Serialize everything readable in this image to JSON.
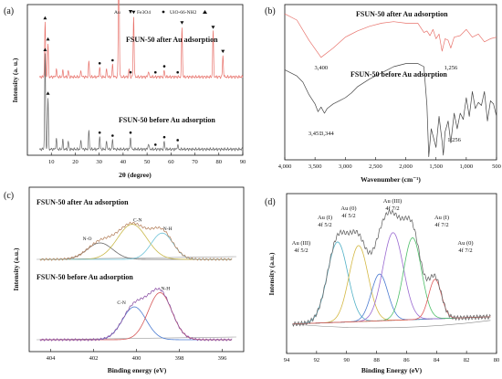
{
  "chart_data": [
    {
      "type": "line",
      "panel": "(a)",
      "xlabel": "2θ (degree)",
      "ylabel": "Intensity (a. u.)",
      "xlim": [
        0,
        90
      ],
      "xticks": [
        10,
        20,
        30,
        40,
        50,
        60,
        70,
        80,
        90
      ],
      "legend": [
        "Au",
        "Fe3O4",
        "UiO-66-NH2"
      ],
      "series": [
        {
          "name": "FSUN-50 after Au adsorption",
          "color": "#e8736c",
          "baseline": 0.52,
          "peaks": [
            [
              7.4,
              0.36
            ],
            [
              8.6,
              0.22
            ],
            [
              12.1,
              0.05
            ],
            [
              14.8,
              0.04
            ],
            [
              17.1,
              0.04
            ],
            [
              22.4,
              0.04
            ],
            [
              25.7,
              0.1
            ],
            [
              30.2,
              0.06
            ],
            [
              33.1,
              0.05
            ],
            [
              35.6,
              0.08
            ],
            [
              38.2,
              0.93
            ],
            [
              42.5,
              0.05
            ],
            [
              44.4,
              0.4
            ],
            [
              50.6,
              0.04
            ],
            [
              57.2,
              0.04
            ],
            [
              64.6,
              0.33
            ],
            [
              77.6,
              0.3
            ],
            [
              81.7,
              0.14
            ]
          ]
        },
        {
          "name": "FSUN-50 before Au adsorption",
          "color": "#666666",
          "baseline": 0.04,
          "peaks": [
            [
              7.4,
              0.63
            ],
            [
              8.6,
              0.34
            ],
            [
              12.1,
              0.07
            ],
            [
              14.8,
              0.06
            ],
            [
              17.1,
              0.05
            ],
            [
              22.4,
              0.06
            ],
            [
              25.7,
              0.12
            ],
            [
              30.2,
              0.08
            ],
            [
              33.1,
              0.05
            ],
            [
              35.6,
              0.06
            ],
            [
              43.1,
              0.08
            ],
            [
              50.6,
              0.04
            ],
            [
              57.2,
              0.05
            ],
            [
              62.8,
              0.03
            ]
          ]
        }
      ],
      "markers": {
        "after": [
          {
            "x": 7.4,
            "m": "tri"
          },
          {
            "x": 8.6,
            "m": "tri"
          },
          {
            "x": 30.2,
            "m": "dot"
          },
          {
            "x": 35.6,
            "m": "dot"
          },
          {
            "x": 38.2,
            "m": "tri_down"
          },
          {
            "x": 43.1,
            "m": "dot"
          },
          {
            "x": 44.4,
            "m": "tri_down"
          },
          {
            "x": 53.5,
            "m": "dot"
          },
          {
            "x": 57.2,
            "m": "dot"
          },
          {
            "x": 62.8,
            "m": "dot"
          },
          {
            "x": 64.6,
            "m": "tri_down"
          },
          {
            "x": 77.6,
            "m": "tri_down"
          },
          {
            "x": 81.7,
            "m": "tri_down"
          }
        ],
        "before": [
          {
            "x": 7.4,
            "m": "tri"
          },
          {
            "x": 8.6,
            "m": "tri"
          },
          {
            "x": 30.2,
            "m": "dot"
          },
          {
            "x": 35.6,
            "m": "dot"
          },
          {
            "x": 43.1,
            "m": "dot"
          },
          {
            "x": 53.5,
            "m": "dot"
          },
          {
            "x": 57.2,
            "m": "dot"
          },
          {
            "x": 62.8,
            "m": "dot"
          }
        ]
      }
    },
    {
      "type": "line",
      "panel": "(b)",
      "xlabel": "Wavenumber (cm⁻¹)",
      "xlim": [
        4000,
        500
      ],
      "xticks": [
        4000,
        3500,
        3000,
        2500,
        2000,
        1500,
        1000,
        500
      ],
      "series": [
        {
          "name": "FSUN-50 after Au adsorption",
          "color": "#e8736c",
          "x": [
            4000,
            3800,
            3600,
            3400,
            3200,
            3000,
            2800,
            2600,
            2400,
            2200,
            2000,
            1900,
            1800,
            1700,
            1650,
            1600,
            1550,
            1500,
            1450,
            1400,
            1350,
            1300,
            1256,
            1200,
            1100,
            1000,
            900,
            800,
            700,
            600,
            500
          ],
          "y": [
            0.94,
            0.9,
            0.77,
            0.66,
            0.72,
            0.79,
            0.83,
            0.86,
            0.88,
            0.89,
            0.88,
            0.88,
            0.88,
            0.82,
            0.83,
            0.8,
            0.84,
            0.78,
            0.81,
            0.7,
            0.78,
            0.77,
            0.72,
            0.79,
            0.8,
            0.84,
            0.79,
            0.81,
            0.76,
            0.78,
            0.79
          ]
        },
        {
          "name": "FSUN-50 before Au adsorption",
          "color": "#444444",
          "x": [
            4000,
            3900,
            3800,
            3700,
            3600,
            3500,
            3451,
            3400,
            3344,
            3300,
            3200,
            3100,
            3000,
            2900,
            2800,
            2600,
            2400,
            2200,
            2000,
            1800,
            1700,
            1650,
            1620,
            1580,
            1500,
            1450,
            1400,
            1380,
            1350,
            1300,
            1256,
            1200,
            1150,
            1100,
            1050,
            1000,
            950,
            900,
            850,
            800,
            750,
            700,
            650,
            600,
            550,
            500
          ],
          "y": [
            0.58,
            0.56,
            0.54,
            0.5,
            0.42,
            0.36,
            0.31,
            0.34,
            0.3,
            0.33,
            0.36,
            0.38,
            0.4,
            0.43,
            0.47,
            0.52,
            0.56,
            0.6,
            0.62,
            0.62,
            0.6,
            0.35,
            0.02,
            0.2,
            0.08,
            0.28,
            0.12,
            0.03,
            0.18,
            0.25,
            0.11,
            0.3,
            0.2,
            0.3,
            0.26,
            0.4,
            0.28,
            0.44,
            0.33,
            0.37,
            0.35,
            0.44,
            0.25,
            0.38,
            0.36,
            0.28
          ]
        }
      ],
      "labels": [
        {
          "text": "3,400",
          "x": 3400
        },
        {
          "text": "1,256",
          "x": 1256
        },
        {
          "text": "3,451",
          "x": 3500
        },
        {
          "text": "3,344",
          "x": 3300
        },
        {
          "text": "1,256",
          "x": 1200
        }
      ]
    },
    {
      "type": "line",
      "panel": "(c)",
      "xlabel": "Binding energy (eV)",
      "ylabel": "Intensity (a.u.)",
      "xlim": [
        405,
        395
      ],
      "xticks": [
        404,
        402,
        400,
        398,
        396
      ],
      "groups": [
        {
          "title": "FSUN-50 after Au adsorption",
          "peaks": [
            {
              "label": "N-O",
              "center": 401.7,
              "height": 0.15,
              "width": 1.4,
              "color": "#6e6e6e"
            },
            {
              "label": "C-N",
              "center": 400.2,
              "height": 0.32,
              "width": 1.6,
              "color": "#c9b94a"
            },
            {
              "label": "N-H",
              "center": 398.8,
              "height": 0.24,
              "width": 1.2,
              "color": "#6fc3d8"
            }
          ],
          "envelope_color": "#e8a77a"
        },
        {
          "title": "FSUN-50 before Au adsorption",
          "peaks": [
            {
              "label": "C-N",
              "center": 400.1,
              "height": 0.3,
              "width": 1.3,
              "color": "#4b7bd1"
            },
            {
              "label": "N-H",
              "center": 398.9,
              "height": 0.43,
              "width": 1.3,
              "color": "#d65757"
            }
          ],
          "envelope_color": "#b36ad1"
        }
      ]
    },
    {
      "type": "line",
      "panel": "(d)",
      "xlabel": "Binding Energy (eV)",
      "ylabel": "Intensity (a.u.)",
      "xlim": [
        94,
        80
      ],
      "xticks": [
        94,
        92,
        90,
        88,
        86,
        84,
        82,
        80
      ],
      "peaks": [
        {
          "label": [
            "Au (III)",
            "4f 5/2"
          ],
          "center": 90.6,
          "height": 0.55,
          "width": 1.6,
          "color": "#4fb0c6"
        },
        {
          "label": [
            "Au (I)",
            "4f 5/2"
          ],
          "center": 89.2,
          "height": 0.52,
          "width": 1.5,
          "color": "#d4b843"
        },
        {
          "label": [
            "Au (0)",
            "4f 5/2"
          ],
          "center": 87.8,
          "height": 0.32,
          "width": 1.3,
          "color": "#4b7bd1"
        },
        {
          "label": [
            "Au (III)",
            "4f 7/2"
          ],
          "center": 86.9,
          "height": 0.6,
          "width": 1.6,
          "color": "#9a6ad1"
        },
        {
          "label": [
            "Au (I)",
            "4f 7/2"
          ],
          "center": 85.6,
          "height": 0.56,
          "width": 1.4,
          "color": "#4fbf6a"
        },
        {
          "label": [
            "Au (0)",
            "4f 7/2"
          ],
          "center": 84.1,
          "height": 0.27,
          "width": 1.0,
          "color": "#e05a5a"
        }
      ],
      "envelope_color": "#888888"
    }
  ]
}
